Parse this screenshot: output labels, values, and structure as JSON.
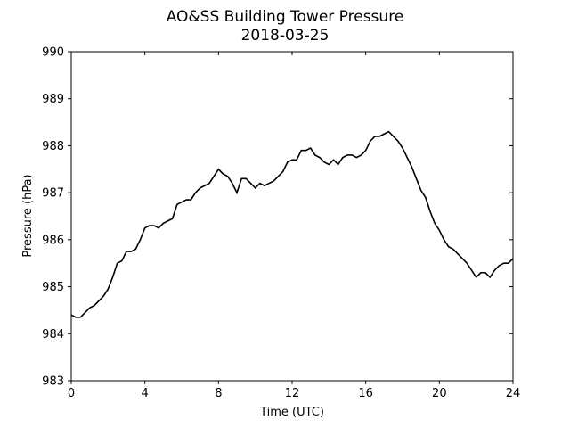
{
  "chart_data": {
    "type": "line",
    "title": "AO&SS Building Tower Pressure",
    "subtitle": "2018-03-25",
    "x_label": "Time (UTC)",
    "y_label": "Pressure (hPa)",
    "xlim": [
      0,
      24
    ],
    "xticks": [
      0,
      4,
      8,
      12,
      16,
      20,
      24
    ],
    "ylim": [
      983,
      990
    ],
    "yticks": [
      983,
      984,
      985,
      986,
      987,
      988,
      989,
      990
    ],
    "x": [
      0,
      0.25,
      0.5,
      0.75,
      1,
      1.25,
      1.5,
      1.75,
      2,
      2.25,
      2.5,
      2.75,
      3,
      3.25,
      3.5,
      3.75,
      4,
      4.25,
      4.5,
      4.75,
      5,
      5.25,
      5.5,
      5.75,
      6,
      6.25,
      6.5,
      6.75,
      7,
      7.25,
      7.5,
      7.75,
      8,
      8.25,
      8.5,
      8.75,
      9,
      9.25,
      9.5,
      9.75,
      10,
      10.25,
      10.5,
      10.75,
      11,
      11.25,
      11.5,
      11.75,
      12,
      12.25,
      12.5,
      12.75,
      13,
      13.25,
      13.5,
      13.75,
      14,
      14.25,
      14.5,
      14.75,
      15,
      15.25,
      15.5,
      15.75,
      16,
      16.25,
      16.5,
      16.75,
      17,
      17.25,
      17.5,
      17.75,
      18,
      18.25,
      18.5,
      18.75,
      19,
      19.25,
      19.5,
      19.75,
      20,
      20.25,
      20.5,
      20.75,
      21,
      21.25,
      21.5,
      21.75,
      22,
      22.25,
      22.5,
      22.75,
      23,
      23.25,
      23.5,
      23.75,
      24
    ],
    "series": [
      {
        "color": "#000000",
        "values": [
          984.4,
          984.35,
          984.35,
          984.45,
          984.55,
          984.6,
          984.7,
          984.8,
          984.95,
          985.2,
          985.5,
          985.55,
          985.75,
          985.75,
          985.8,
          986.0,
          986.25,
          986.3,
          986.3,
          986.25,
          986.35,
          986.4,
          986.45,
          986.75,
          986.8,
          986.85,
          986.85,
          987.0,
          987.1,
          987.15,
          987.2,
          987.35,
          987.5,
          987.4,
          987.35,
          987.2,
          987.0,
          987.3,
          987.3,
          987.2,
          987.1,
          987.2,
          987.15,
          987.2,
          987.25,
          987.35,
          987.45,
          987.65,
          987.7,
          987.7,
          987.9,
          987.9,
          987.95,
          987.8,
          987.75,
          987.65,
          987.6,
          987.7,
          987.6,
          987.75,
          987.8,
          987.8,
          987.75,
          987.8,
          987.9,
          988.1,
          988.2,
          988.2,
          988.25,
          988.3,
          988.2,
          988.1,
          987.95,
          987.75,
          987.55,
          987.3,
          987.05,
          986.9,
          986.6,
          986.35,
          986.2,
          986.0,
          985.85,
          985.8,
          985.7,
          985.6,
          985.5,
          985.35,
          985.2,
          985.3,
          985.3,
          985.2,
          985.35,
          985.45,
          985.5,
          985.5,
          985.6
        ]
      }
    ]
  }
}
